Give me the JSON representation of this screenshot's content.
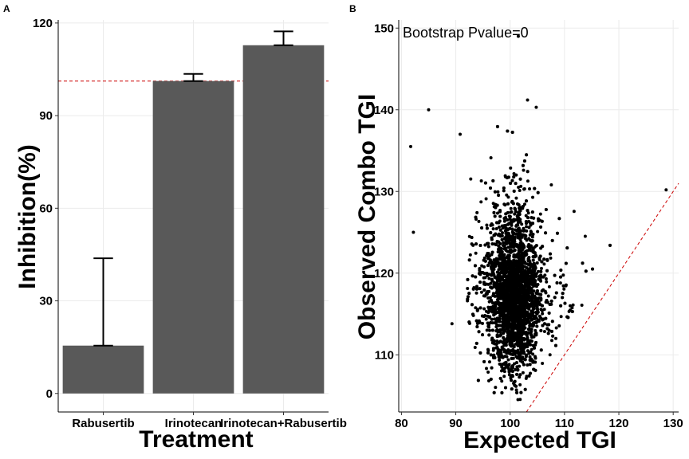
{
  "chart_data": [
    {
      "panel": "A",
      "type": "bar",
      "categories": [
        "Rabusertib",
        "Irinotecan",
        "Irinotecan+Rabusertib"
      ],
      "values": [
        15.5,
        101.2,
        112.8
      ],
      "error_upper": [
        43.8,
        103.5,
        117.3
      ],
      "error_lower": [
        15.5,
        101.2,
        112.8
      ],
      "bar_color": "#595959",
      "reference_line": {
        "y": 101.2,
        "color": "#cc0000",
        "style": "dashed"
      },
      "xlabel": "Treatment",
      "ylabel": "Inhibition(%)",
      "ylim": [
        -6,
        121
      ],
      "yticks": [
        0,
        30,
        60,
        90,
        120
      ],
      "grid": true
    },
    {
      "panel": "B",
      "type": "scatter",
      "annotation": "Bootstrap Pvalue=0",
      "xlabel": "Expected TGI",
      "ylabel": "Observed Combo TGI",
      "xlim": [
        79.5,
        131
      ],
      "ylim": [
        103,
        151
      ],
      "xticks": [
        80,
        90,
        100,
        110,
        120,
        130
      ],
      "yticks": [
        110,
        120,
        130,
        140,
        150
      ],
      "reference_line": {
        "type": "y=x",
        "color": "#cc0000",
        "style": "dashed"
      },
      "point_color": "#000000",
      "grid": true,
      "notable_points": [
        {
          "x": 101.5,
          "y": 149.0
        },
        {
          "x": 81.7,
          "y": 135.5
        },
        {
          "x": 82.2,
          "y": 125.0
        },
        {
          "x": 85.0,
          "y": 140.0
        },
        {
          "x": 128.7,
          "y": 130.2
        },
        {
          "x": 103.2,
          "y": 141.2
        },
        {
          "x": 104.8,
          "y": 140.3
        },
        {
          "x": 90.8,
          "y": 137.0
        },
        {
          "x": 89.3,
          "y": 113.8
        }
      ],
      "cluster": {
        "center": {
          "x": 100.8,
          "y": 116.5
        },
        "x_range": [
          92,
          122
        ],
        "y_range": [
          104.5,
          138
        ],
        "count_approx": 7000
      }
    }
  ]
}
